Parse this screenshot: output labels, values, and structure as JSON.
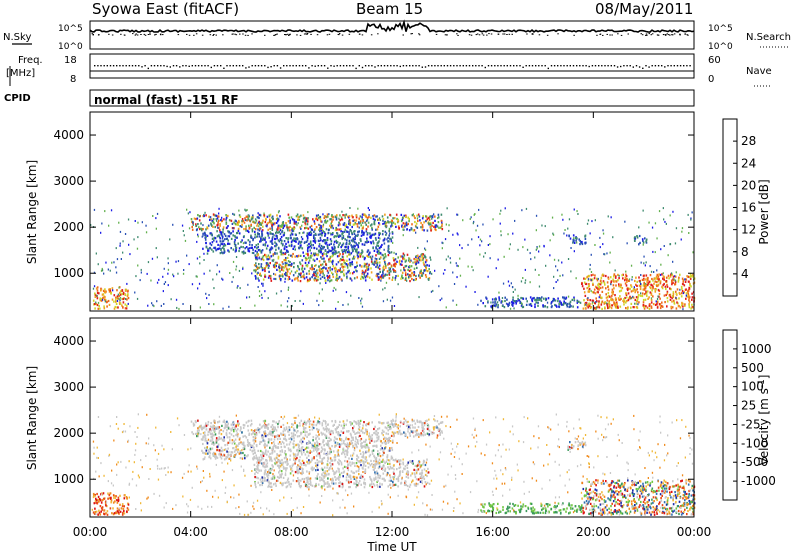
{
  "header": {
    "station": "Syowa East (fitACF)",
    "beam": "Beam 15",
    "date": "08/May/2011"
  },
  "nsky_panel": {
    "left_label": "N.Sky",
    "left_ticks": [
      "10^5",
      "10^0"
    ],
    "right_label": "N.Search",
    "right_ticks": [
      "10^5",
      "10^0"
    ]
  },
  "freq_panel": {
    "left_label_1": "Freq.",
    "left_label_2": "[MHz]",
    "left_ticks": [
      "18",
      "8"
    ],
    "right_label": "Nave",
    "right_ticks": [
      "60",
      "0"
    ]
  },
  "cpid_panel": {
    "left_label": "CPID",
    "mode": "normal (fast) -151 RF"
  },
  "chart_data": [
    {
      "type": "heatmap",
      "name": "Power panel",
      "ylabel": "Slant Range [km]",
      "ylim": [
        180,
        4500
      ],
      "yticks": [
        "1000",
        "2000",
        "3000",
        "4000"
      ],
      "xlim_hours": [
        0,
        24
      ],
      "colorbar_label": "Power [dB]",
      "colorbar_ticks": [
        "28",
        "24",
        "20",
        "16",
        "12",
        "8",
        "4"
      ],
      "colors": [
        "#1a1ae6",
        "#2850b4",
        "#3e8a6e",
        "#62b04c",
        "#cfd62a",
        "#f0a020",
        "#ee6a18",
        "#e01c1c"
      ],
      "regions": [
        {
          "t0": 4.0,
          "t1": 14.0,
          "r0": 1950,
          "r1": 2300,
          "level": "mixed"
        },
        {
          "t0": 4.4,
          "t1": 12.0,
          "r0": 1450,
          "r1": 1950,
          "level": "low"
        },
        {
          "t0": 6.5,
          "t1": 13.5,
          "r0": 850,
          "r1": 1450,
          "level": "mixed"
        },
        {
          "t0": 0.1,
          "t1": 1.5,
          "r0": 250,
          "r1": 720,
          "level": "high"
        },
        {
          "t0": 19.5,
          "t1": 24.0,
          "r0": 250,
          "r1": 1000,
          "level": "high"
        },
        {
          "t0": 18.9,
          "t1": 19.7,
          "r0": 1650,
          "r1": 1850,
          "level": "low"
        },
        {
          "t0": 21.6,
          "t1": 22.1,
          "r0": 1650,
          "r1": 1850,
          "level": "low"
        },
        {
          "t0": 15.5,
          "t1": 19.5,
          "r0": 280,
          "r1": 500,
          "level": "low"
        }
      ]
    },
    {
      "type": "heatmap",
      "name": "Velocity panel",
      "ylabel": "Slant Range [km]",
      "ylim": [
        180,
        4500
      ],
      "yticks": [
        "1000",
        "2000",
        "3000",
        "4000"
      ],
      "xlim_hours": [
        0,
        24
      ],
      "xticks": [
        "00:00",
        "04:00",
        "08:00",
        "12:00",
        "16:00",
        "20:00",
        "00:00"
      ],
      "xlabel": "Time UT",
      "colorbar_label": "Velocity [m s^-1]",
      "colorbar_ticks": [
        "1000",
        "500",
        "100",
        "25",
        "-25",
        "-100",
        "-500",
        "-1000"
      ],
      "colors": [
        "#1a2aa8",
        "#2e6eb0",
        "#3a9a5a",
        "#6fc640",
        "#c8c8c8",
        "#f0b838",
        "#f08a1c",
        "#e84a14",
        "#dc1010"
      ],
      "regions": [
        {
          "t0": 4.0,
          "t1": 14.0,
          "r0": 1950,
          "r1": 2300,
          "level": "grey"
        },
        {
          "t0": 4.4,
          "t1": 12.0,
          "r0": 1450,
          "r1": 1950,
          "level": "grey"
        },
        {
          "t0": 6.5,
          "t1": 13.5,
          "r0": 850,
          "r1": 1450,
          "level": "grey"
        },
        {
          "t0": 0.1,
          "t1": 1.5,
          "r0": 250,
          "r1": 720,
          "level": "neg"
        },
        {
          "t0": 19.5,
          "t1": 24.0,
          "r0": 250,
          "r1": 1000,
          "level": "mixed"
        },
        {
          "t0": 18.9,
          "t1": 19.7,
          "r0": 1650,
          "r1": 1850,
          "level": "grey"
        },
        {
          "t0": 15.5,
          "t1": 19.5,
          "r0": 280,
          "r1": 500,
          "level": "green"
        }
      ]
    }
  ]
}
